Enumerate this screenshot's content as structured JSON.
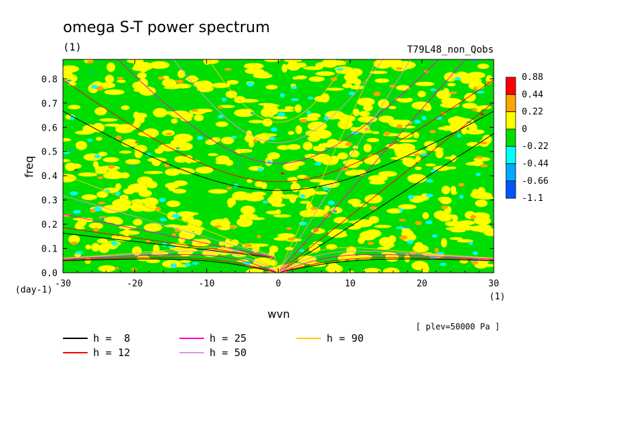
{
  "chart_data": {
    "type": "heatmap",
    "title": "omega S-T power spectrum",
    "subtitle": "(1)",
    "run_label": "T79L48_non_Qobs",
    "xlabel": "wvn",
    "ylabel": "freq",
    "x_unit": "(1)",
    "y_unit": "(day-1)",
    "footnote": "[ plev=50000 Pa ]",
    "xlim": [
      -30,
      30
    ],
    "ylim": [
      0,
      0.88
    ],
    "x_ticks": [
      -30,
      -20,
      -10,
      0,
      10,
      20,
      30
    ],
    "x_tick_labels": [
      "-30",
      "-20",
      "-10",
      "0",
      "10",
      "20",
      "30"
    ],
    "y_ticks": [
      0,
      0.1,
      0.2,
      0.3,
      0.4,
      0.5,
      0.6,
      0.7,
      0.8
    ],
    "y_tick_labels": [
      "0.0",
      "0.1",
      "0.2",
      "0.3",
      "0.4",
      "0.5",
      "0.6",
      "0.7",
      "0.8"
    ],
    "colorbar": {
      "levels": [
        "0.88",
        "0.44",
        "0.22",
        "0",
        "-0.22",
        "-0.44",
        "-0.66",
        "-1.1"
      ],
      "colors": [
        "#ff0000",
        "#ffa500",
        "#ffff00",
        "#00dd00",
        "#00ffff",
        "#00aaff",
        "#0055ff"
      ]
    },
    "background_field": {
      "dominant_colors": [
        "#00dd00",
        "#ffff00"
      ],
      "speckle_colors": [
        "#ffa500",
        "#00ffff",
        "#00aaff",
        "#ff0000"
      ]
    },
    "dispersion_curves": [
      {
        "name": "h =  8",
        "color": "#000000"
      },
      {
        "name": "h = 12",
        "color": "#ff0000"
      },
      {
        "name": "h = 25",
        "color": "#ff00cc"
      },
      {
        "name": "h = 50",
        "color": "#dd99dd"
      },
      {
        "name": "h = 90",
        "color": "#ffcc00"
      }
    ]
  }
}
